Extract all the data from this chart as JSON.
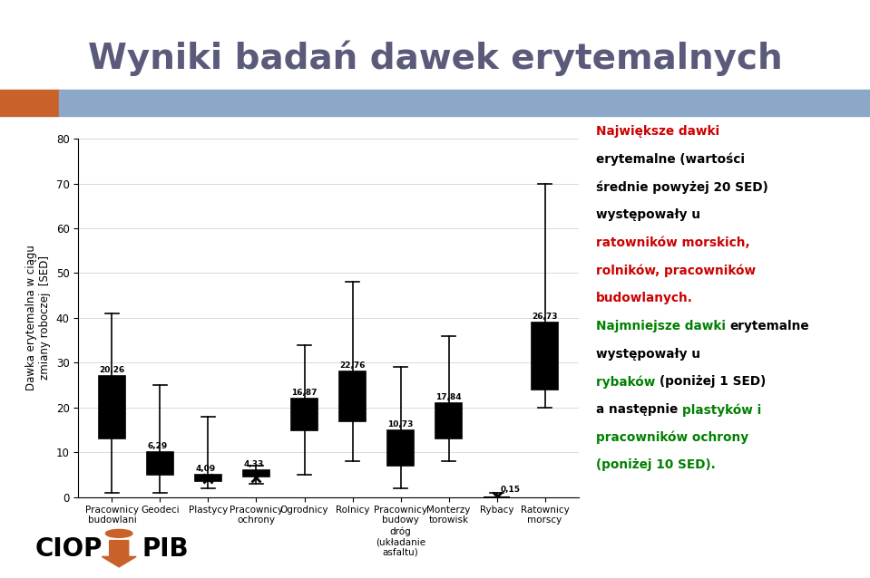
{
  "title": "Wyniki badań dawek erytemalnych",
  "ylabel": "Dawka erytemalna w ciągu\nzmiany roboczej  [SED]",
  "ylim": [
    0,
    80
  ],
  "yticks": [
    0,
    10,
    20,
    30,
    40,
    50,
    60,
    70,
    80
  ],
  "categories": [
    "Pracownicy\nbudowlani",
    "Geodeci",
    "Plastycy",
    "Pracownicy\nochrony",
    "Ogrodnicy",
    "Rolnicy",
    "Pracownicy\nbudowy\ndróg\n(układanie\nasfaltu)",
    "Monterzy\ntorowisk",
    "Rybacy",
    "Ratownicy\nmorscy"
  ],
  "boxes": [
    {
      "q1": 13,
      "median": 20,
      "q3": 27,
      "whisker_low": 1,
      "whisker_high": 41,
      "mean": 20.26,
      "mean_label": "20,26"
    },
    {
      "q1": 5,
      "median": 8,
      "q3": 10,
      "whisker_low": 1,
      "whisker_high": 25,
      "mean": 6.29,
      "mean_label": "6,29"
    },
    {
      "q1": 3.5,
      "median": 4.5,
      "q3": 5,
      "whisker_low": 2,
      "whisker_high": 18,
      "mean": 4.09,
      "mean_label": "4,09"
    },
    {
      "q1": 4.5,
      "median": 5,
      "q3": 6,
      "whisker_low": 3,
      "whisker_high": 7,
      "mean": 4.33,
      "mean_label": "4,33"
    },
    {
      "q1": 15,
      "median": 19,
      "q3": 22,
      "whisker_low": 5,
      "whisker_high": 34,
      "mean": 16.87,
      "mean_label": "16,87"
    },
    {
      "q1": 17,
      "median": 23,
      "q3": 28,
      "whisker_low": 8,
      "whisker_high": 48,
      "mean": 22.76,
      "mean_label": "22,76"
    },
    {
      "q1": 7,
      "median": 11,
      "q3": 15,
      "whisker_low": 2,
      "whisker_high": 29,
      "mean": 10.73,
      "mean_label": "10,73"
    },
    {
      "q1": 13,
      "median": 18,
      "q3": 21,
      "whisker_low": 8,
      "whisker_high": 36,
      "mean": 17.84,
      "mean_label": "17,84"
    },
    {
      "q1": 0,
      "median": 0,
      "q3": 0,
      "whisker_low": 0,
      "whisker_high": 1,
      "mean": 0.15,
      "mean_label": "0,15"
    },
    {
      "q1": 24,
      "median": 28,
      "q3": 39,
      "whisker_low": 20,
      "whisker_high": 70,
      "mean": 26.73,
      "mean_label": "26,73"
    }
  ],
  "box_color": "#00C8F0",
  "box_edge_color": "#000000",
  "median_color": "#000000",
  "whisker_color": "#000000",
  "cap_color": "#000000",
  "mean_color": "#000000",
  "header_orange": "#C8622A",
  "header_blue": "#8BA8C8",
  "title_color": "#5A5A7A",
  "background_color": "#FFFFFF",
  "annotation_lines": [
    [
      {
        "text": "Największe dawki ",
        "color": "#CC0000",
        "bold": true
      }
    ],
    [
      {
        "text": "erytemalne (wartości",
        "color": "#000000",
        "bold": true
      }
    ],
    [
      {
        "text": "średnie powyżej 20 SED)",
        "color": "#000000",
        "bold": true
      }
    ],
    [
      {
        "text": "występowały u",
        "color": "#000000",
        "bold": true
      }
    ],
    [
      {
        "text": "ratowników morskich,",
        "color": "#CC0000",
        "bold": true
      }
    ],
    [
      {
        "text": "rolników, pracowników",
        "color": "#CC0000",
        "bold": true
      }
    ],
    [
      {
        "text": "budowlanych.",
        "color": "#CC0000",
        "bold": true
      }
    ],
    [
      {
        "text": "Najmniejsze dawki ",
        "color": "#008000",
        "bold": true
      },
      {
        "text": "erytemalne",
        "color": "#000000",
        "bold": true
      }
    ],
    [
      {
        "text": "występowały u",
        "color": "#000000",
        "bold": true
      }
    ],
    [
      {
        "text": "rybaków ",
        "color": "#008000",
        "bold": true
      },
      {
        "text": "(poniżej 1 SED)",
        "color": "#000000",
        "bold": true
      }
    ],
    [
      {
        "text": "a następnie ",
        "color": "#000000",
        "bold": true
      },
      {
        "text": "plastyków i",
        "color": "#008000",
        "bold": true
      }
    ],
    [
      {
        "text": "pracowników ochrony",
        "color": "#008000",
        "bold": true
      }
    ],
    [
      {
        "text": "(poniżej 10 SED).",
        "color": "#008000",
        "bold": true
      }
    ]
  ]
}
